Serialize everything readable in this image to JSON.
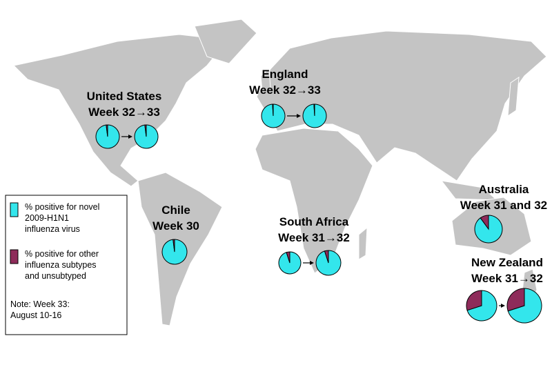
{
  "regions": [
    {
      "name": "United States",
      "period": "Week 32→33",
      "pies": [
        {
          "values": [
            98,
            2
          ]
        },
        {
          "values": [
            98,
            2
          ]
        }
      ]
    },
    {
      "name": "England",
      "period": "Week 32→33",
      "pies": [
        {
          "values": [
            99,
            1
          ]
        },
        {
          "values": [
            99,
            1
          ]
        }
      ]
    },
    {
      "name": "Chile",
      "period": "Week 30",
      "pies": [
        {
          "values": [
            98,
            2
          ]
        }
      ]
    },
    {
      "name": "South Africa",
      "period": "Week 31→32",
      "pies": [
        {
          "values": [
            95,
            5
          ]
        },
        {
          "values": [
            95,
            5
          ]
        }
      ]
    },
    {
      "name": "Australia",
      "period": "Week 31 and 32",
      "pies": [
        {
          "values": [
            90,
            10
          ]
        }
      ]
    },
    {
      "name": "New Zealand",
      "period": "Week 31→32",
      "pies": [
        {
          "values": [
            70,
            30
          ]
        },
        {
          "values": [
            70,
            30
          ]
        }
      ]
    }
  ],
  "legend": {
    "items": [
      {
        "lines": [
          "% positive for novel",
          "2009-H1N1",
          "influenza virus"
        ],
        "color": "#33e6ec"
      },
      {
        "lines": [
          "% positive for other",
          "influenza subtypes",
          "and unsubtyped"
        ],
        "color": "#8e2b5a"
      }
    ],
    "note": [
      "Note: Week 33:",
      "August 10-16"
    ]
  }
}
